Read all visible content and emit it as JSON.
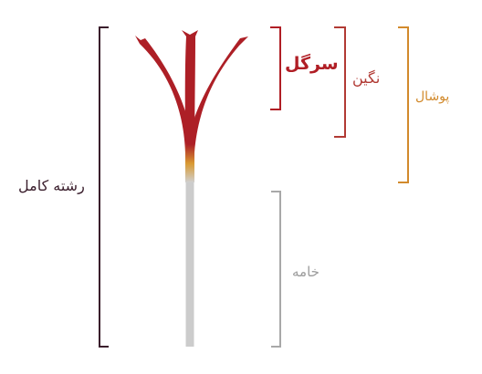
{
  "labels": {
    "whole_thread": "رشته کامل",
    "sargol": "سرگل",
    "negin": "نگین",
    "pushal": "پوشال",
    "khameh": "خامه"
  },
  "colors": {
    "stigma": "#b01e25",
    "style": "#cccccc",
    "transition": "#d8a034",
    "bracket_whole": "#3a1e2c",
    "bracket_sargol": "#b01e25",
    "bracket_negin": "#b13a34",
    "bracket_pushal": "#d28a2c",
    "bracket_khameh": "#a8a8a8"
  }
}
